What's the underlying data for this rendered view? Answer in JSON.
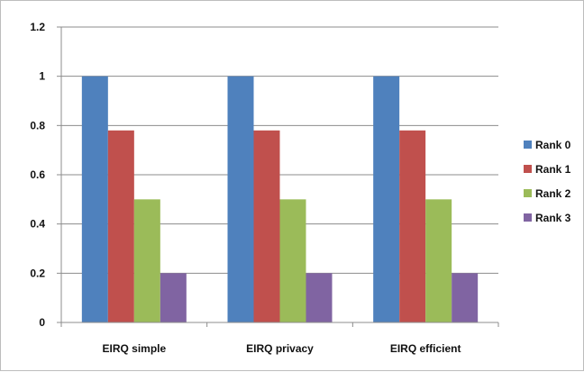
{
  "chart_data": {
    "type": "bar",
    "title": "",
    "xlabel": "",
    "ylabel": "",
    "categories": [
      "EIRQ simple",
      "EIRQ privacy",
      "EIRQ efficient"
    ],
    "series": [
      {
        "name": "Rank 0",
        "color": "#4f81bd",
        "values": [
          1.0,
          1.0,
          1.0
        ]
      },
      {
        "name": "Rank 1",
        "color": "#c0504d",
        "values": [
          0.78,
          0.78,
          0.78
        ]
      },
      {
        "name": "Rank 2",
        "color": "#9bbb59",
        "values": [
          0.5,
          0.5,
          0.5
        ]
      },
      {
        "name": "Rank 3",
        "color": "#8064a2",
        "values": [
          0.2,
          0.2,
          0.2
        ]
      }
    ],
    "ylim": [
      0,
      1.2
    ],
    "yticks": [
      "0",
      "0.2",
      "0.4",
      "0.6",
      "0.8",
      "1",
      "1.2"
    ],
    "grid": "horizontal",
    "legend_position": "right"
  }
}
